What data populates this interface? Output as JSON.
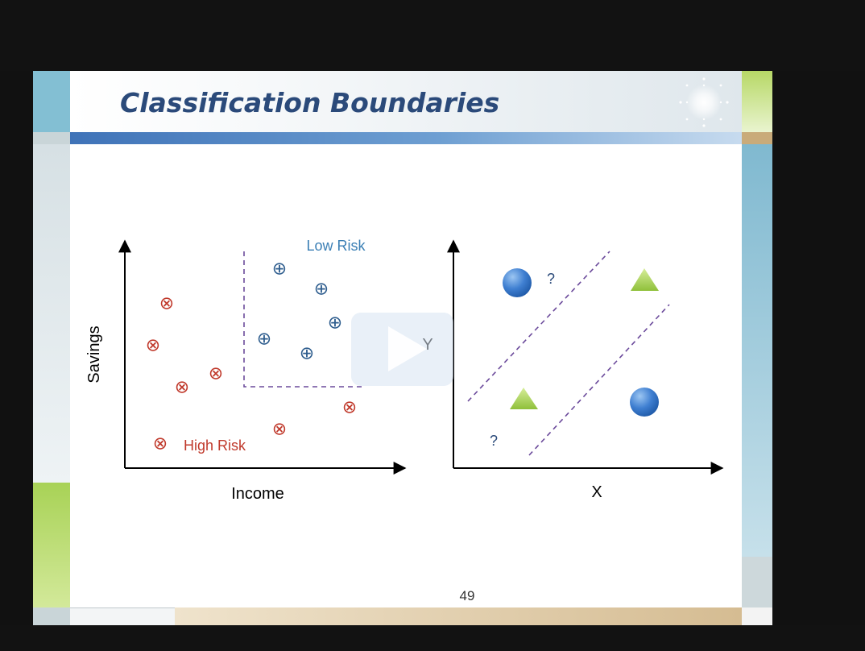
{
  "slide": {
    "title": "Classification Boundaries",
    "page_number": "49"
  },
  "diagram_left": {
    "y_axis_label": "Savings",
    "x_axis_label": "Income",
    "low_risk_label": "Low Risk",
    "high_risk_label": "High Risk",
    "low_risk_symbol": "⊕",
    "high_risk_symbol": "⊗",
    "low_risk_color": "#2e5d8e",
    "high_risk_color": "#c0392b"
  },
  "diagram_right": {
    "y_axis_label": "Y",
    "x_axis_label": "X",
    "unknown_labels": [
      "?",
      "?"
    ],
    "circle_color": "#3f7fd1",
    "triangle_color": "#a3d147"
  },
  "colors": {
    "title": "#2b4a7a",
    "boundary": "#6b4a9b",
    "accent_blue": "#3f73b8",
    "accent_green": "#b7d866"
  }
}
